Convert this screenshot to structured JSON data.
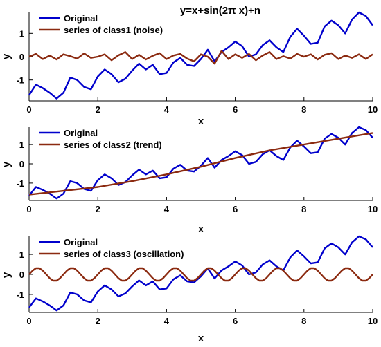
{
  "chart_data": [
    {
      "type": "line",
      "title": "y=x+sin(2π x)+n",
      "xlabel": "x",
      "ylabel": "y",
      "xlim": [
        0,
        10
      ],
      "ylim": [
        -1.9,
        1.9
      ],
      "xticks": [
        0,
        2,
        4,
        6,
        8,
        10
      ],
      "yticks": [
        -1,
        0,
        1
      ],
      "grid": false,
      "legend_position": "top-left",
      "series": [
        {
          "name": "Original",
          "color": "#0000cc",
          "x": [
            0,
            0.2,
            0.4,
            0.6,
            0.8,
            1.0,
            1.2,
            1.4,
            1.6,
            1.8,
            2.0,
            2.2,
            2.4,
            2.6,
            2.8,
            3.0,
            3.2,
            3.4,
            3.6,
            3.8,
            4.0,
            4.2,
            4.4,
            4.6,
            4.8,
            5.0,
            5.2,
            5.4,
            5.6,
            5.8,
            6.0,
            6.2,
            6.4,
            6.6,
            6.8,
            7.0,
            7.2,
            7.4,
            7.6,
            7.8,
            8.0,
            8.2,
            8.4,
            8.6,
            8.8,
            9.0,
            9.2,
            9.4,
            9.6,
            9.8,
            10.0
          ],
          "values": [
            -1.65,
            -1.2,
            -1.35,
            -1.55,
            -1.8,
            -1.55,
            -0.9,
            -1.0,
            -1.3,
            -1.4,
            -0.85,
            -0.55,
            -0.75,
            -1.1,
            -0.95,
            -0.6,
            -0.3,
            -0.55,
            -0.35,
            -0.75,
            -0.7,
            -0.25,
            -0.05,
            -0.35,
            -0.4,
            -0.1,
            0.3,
            -0.2,
            0.2,
            0.4,
            0.65,
            0.45,
            0.0,
            0.1,
            0.5,
            0.7,
            0.4,
            0.2,
            0.85,
            1.2,
            0.9,
            0.55,
            0.6,
            1.3,
            1.55,
            1.35,
            1.0,
            1.6,
            1.9,
            1.75,
            1.35
          ]
        },
        {
          "name": "series of class1 (noise)",
          "color": "#8b2a10",
          "x": [
            0,
            0.2,
            0.4,
            0.6,
            0.8,
            1.0,
            1.2,
            1.4,
            1.6,
            1.8,
            2.0,
            2.2,
            2.4,
            2.6,
            2.8,
            3.0,
            3.2,
            3.4,
            3.6,
            3.8,
            4.0,
            4.2,
            4.4,
            4.6,
            4.8,
            5.0,
            5.2,
            5.4,
            5.6,
            5.8,
            6.0,
            6.2,
            6.4,
            6.6,
            6.8,
            7.0,
            7.2,
            7.4,
            7.6,
            7.8,
            8.0,
            8.2,
            8.4,
            8.6,
            8.8,
            9.0,
            9.2,
            9.4,
            9.6,
            9.8,
            10.0
          ],
          "values": [
            0.0,
            0.12,
            -0.1,
            0.05,
            -0.12,
            0.1,
            0.02,
            -0.08,
            0.14,
            -0.05,
            0.0,
            0.1,
            -0.15,
            0.06,
            0.2,
            -0.1,
            0.08,
            -0.12,
            0.04,
            0.15,
            -0.1,
            0.05,
            0.12,
            -0.08,
            -0.2,
            0.1,
            0.0,
            -0.3,
            0.25,
            -0.1,
            0.1,
            -0.05,
            0.12,
            -0.15,
            0.05,
            0.2,
            -0.1,
            0.02,
            -0.08,
            0.12,
            0.0,
            0.1,
            -0.12,
            0.08,
            0.15,
            -0.1,
            0.05,
            -0.05,
            0.1,
            -0.1,
            0.1
          ]
        }
      ]
    },
    {
      "type": "line",
      "xlabel": "x",
      "ylabel": "y",
      "xlim": [
        0,
        10
      ],
      "ylim": [
        -1.9,
        1.9
      ],
      "xticks": [
        0,
        2,
        4,
        6,
        8,
        10
      ],
      "yticks": [
        -1,
        0,
        1
      ],
      "grid": false,
      "legend_position": "top-left",
      "series": [
        {
          "name": "Original",
          "color": "#0000cc",
          "x": [
            0,
            0.2,
            0.4,
            0.6,
            0.8,
            1.0,
            1.2,
            1.4,
            1.6,
            1.8,
            2.0,
            2.2,
            2.4,
            2.6,
            2.8,
            3.0,
            3.2,
            3.4,
            3.6,
            3.8,
            4.0,
            4.2,
            4.4,
            4.6,
            4.8,
            5.0,
            5.2,
            5.4,
            5.6,
            5.8,
            6.0,
            6.2,
            6.4,
            6.6,
            6.8,
            7.0,
            7.2,
            7.4,
            7.6,
            7.8,
            8.0,
            8.2,
            8.4,
            8.6,
            8.8,
            9.0,
            9.2,
            9.4,
            9.6,
            9.8,
            10.0
          ],
          "values": [
            -1.65,
            -1.2,
            -1.35,
            -1.55,
            -1.8,
            -1.55,
            -0.9,
            -1.0,
            -1.3,
            -1.4,
            -0.85,
            -0.55,
            -0.75,
            -1.1,
            -0.95,
            -0.6,
            -0.3,
            -0.55,
            -0.35,
            -0.75,
            -0.7,
            -0.25,
            -0.05,
            -0.35,
            -0.4,
            -0.1,
            0.3,
            -0.2,
            0.2,
            0.4,
            0.65,
            0.45,
            0.0,
            0.1,
            0.5,
            0.7,
            0.4,
            0.2,
            0.85,
            1.2,
            0.9,
            0.55,
            0.6,
            1.3,
            1.55,
            1.35,
            1.0,
            1.6,
            1.9,
            1.75,
            1.35
          ]
        },
        {
          "name": "series of class2 (trend)",
          "color": "#8b2a10",
          "x": [
            0,
            1,
            2,
            3,
            4,
            5,
            6,
            7,
            8,
            9,
            10
          ],
          "values": [
            -1.6,
            -1.4,
            -1.2,
            -0.9,
            -0.55,
            -0.15,
            0.3,
            0.7,
            1.0,
            1.3,
            1.6
          ]
        }
      ]
    },
    {
      "type": "line",
      "xlabel": "x",
      "ylabel": "y",
      "xlim": [
        0,
        10
      ],
      "ylim": [
        -1.9,
        1.9
      ],
      "xticks": [
        0,
        2,
        4,
        6,
        8,
        10
      ],
      "yticks": [
        -1,
        0,
        1
      ],
      "grid": false,
      "legend_position": "top-left",
      "series": [
        {
          "name": "Original",
          "color": "#0000cc",
          "x": [
            0,
            0.2,
            0.4,
            0.6,
            0.8,
            1.0,
            1.2,
            1.4,
            1.6,
            1.8,
            2.0,
            2.2,
            2.4,
            2.6,
            2.8,
            3.0,
            3.2,
            3.4,
            3.6,
            3.8,
            4.0,
            4.2,
            4.4,
            4.6,
            4.8,
            5.0,
            5.2,
            5.4,
            5.6,
            5.8,
            6.0,
            6.2,
            6.4,
            6.6,
            6.8,
            7.0,
            7.2,
            7.4,
            7.6,
            7.8,
            8.0,
            8.2,
            8.4,
            8.6,
            8.8,
            9.0,
            9.2,
            9.4,
            9.6,
            9.8,
            10.0
          ],
          "values": [
            -1.65,
            -1.2,
            -1.35,
            -1.55,
            -1.8,
            -1.55,
            -0.9,
            -1.0,
            -1.3,
            -1.4,
            -0.85,
            -0.55,
            -0.75,
            -1.1,
            -0.95,
            -0.6,
            -0.3,
            -0.55,
            -0.35,
            -0.75,
            -0.7,
            -0.25,
            -0.05,
            -0.35,
            -0.4,
            -0.1,
            0.3,
            -0.2,
            0.2,
            0.4,
            0.65,
            0.45,
            0.0,
            0.1,
            0.5,
            0.7,
            0.4,
            0.2,
            0.85,
            1.2,
            0.9,
            0.55,
            0.6,
            1.3,
            1.55,
            1.35,
            1.0,
            1.6,
            1.9,
            1.75,
            1.35
          ]
        },
        {
          "name": "series of class3 (oscillation)",
          "color": "#8b2a10",
          "formula": "0.33*sin(2πx)",
          "x": [
            0,
            0.1,
            0.2,
            0.3,
            0.4,
            0.5,
            0.6,
            0.7,
            0.8,
            0.9,
            1.0,
            1.1,
            1.2,
            1.3,
            1.4,
            1.5,
            1.6,
            1.7,
            1.8,
            1.9,
            2.0,
            2.1,
            2.2,
            2.3,
            2.4,
            2.5,
            2.6,
            2.7,
            2.8,
            2.9,
            3.0,
            3.1,
            3.2,
            3.3,
            3.4,
            3.5,
            3.6,
            3.7,
            3.8,
            3.9,
            4.0,
            4.1,
            4.2,
            4.3,
            4.4,
            4.5,
            4.6,
            4.7,
            4.8,
            4.9,
            5.0,
            5.1,
            5.2,
            5.3,
            5.4,
            5.5,
            5.6,
            5.7,
            5.8,
            5.9,
            6.0,
            6.1,
            6.2,
            6.3,
            6.4,
            6.5,
            6.6,
            6.7,
            6.8,
            6.9,
            7.0,
            7.1,
            7.2,
            7.3,
            7.4,
            7.5,
            7.6,
            7.7,
            7.8,
            7.9,
            8.0,
            8.1,
            8.2,
            8.3,
            8.4,
            8.5,
            8.6,
            8.7,
            8.8,
            8.9,
            9.0,
            9.1,
            9.2,
            9.3,
            9.4,
            9.5,
            9.6,
            9.7,
            9.8,
            9.9,
            10.0
          ],
          "values": [
            0.0,
            0.19,
            0.31,
            0.31,
            0.19,
            0.0,
            -0.19,
            -0.31,
            -0.31,
            -0.19,
            0.0,
            0.19,
            0.31,
            0.31,
            0.19,
            0.0,
            -0.19,
            -0.31,
            -0.31,
            -0.19,
            0.0,
            0.19,
            0.31,
            0.31,
            0.19,
            0.0,
            -0.19,
            -0.31,
            -0.31,
            -0.19,
            0.0,
            0.19,
            0.31,
            0.31,
            0.19,
            0.0,
            -0.19,
            -0.31,
            -0.31,
            -0.19,
            0.0,
            0.19,
            0.31,
            0.31,
            0.19,
            0.0,
            -0.19,
            -0.31,
            -0.31,
            -0.19,
            0.0,
            0.19,
            0.31,
            0.31,
            0.19,
            0.0,
            -0.19,
            -0.31,
            -0.31,
            -0.19,
            0.0,
            0.19,
            0.31,
            0.31,
            0.19,
            0.0,
            -0.19,
            -0.31,
            -0.31,
            -0.19,
            0.0,
            0.19,
            0.31,
            0.31,
            0.19,
            0.0,
            -0.19,
            -0.31,
            -0.31,
            -0.19,
            0.0,
            0.19,
            0.31,
            0.31,
            0.19,
            0.0,
            -0.19,
            -0.31,
            -0.31,
            -0.19,
            0.0,
            0.19,
            0.31,
            0.31,
            0.19,
            0.0,
            -0.19,
            -0.31,
            -0.31,
            -0.19,
            0.0
          ]
        }
      ]
    }
  ]
}
